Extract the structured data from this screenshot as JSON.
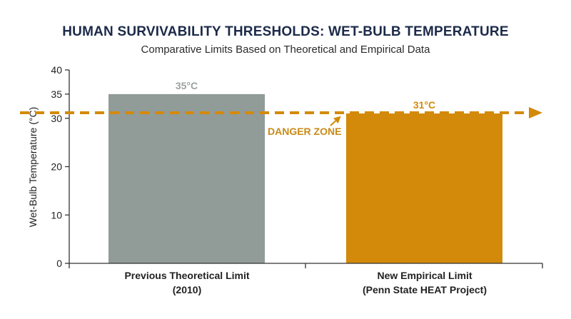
{
  "header": {
    "title": "HUMAN SURVIVABILITY THRESHOLDS: WET-BULB TEMPERATURE",
    "subtitle": "Comparative Limits Based on Theoretical and Empirical Data"
  },
  "colors": {
    "gray_bar": "#919b98",
    "gray_label": "#9aa2a0",
    "orange": "#d38a0a",
    "axis": "#333333",
    "danger_text": "#c98a16"
  },
  "chart_data": {
    "type": "bar",
    "ylabel": "Wet-Bulb Temperature (°C)",
    "ylim": [
      0,
      40
    ],
    "yticks": [
      0,
      10,
      20,
      30,
      35,
      40
    ],
    "categories": [
      [
        "Previous Theoretical Limit",
        "(2010)"
      ],
      [
        "New Empirical Limit",
        "(Penn State HEAT Project)"
      ]
    ],
    "values": [
      35,
      31
    ],
    "value_labels": [
      "35°C",
      "31°C"
    ],
    "threshold": {
      "value": 31,
      "label": "DANGER ZONE",
      "style": "dashed-arrow"
    },
    "grid": false
  }
}
